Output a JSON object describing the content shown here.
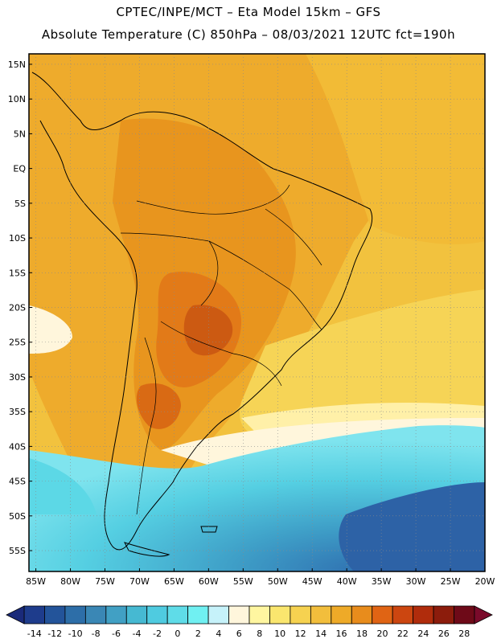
{
  "header": {
    "line1": "CPTEC/INPE/MCT –  Eta Model 15km – GFS",
    "line2": "Absolute Temperature (C) 850hPa – 08/03/2021 12UTC fct=190h"
  },
  "map": {
    "lat_labels": [
      "15N",
      "10N",
      "5N",
      "EQ",
      "5S",
      "10S",
      "15S",
      "20S",
      "25S",
      "30S",
      "35S",
      "40S",
      "45S",
      "50S",
      "55S"
    ],
    "lat_values": [
      15,
      10,
      5,
      0,
      -5,
      -10,
      -15,
      -20,
      -25,
      -30,
      -35,
      -40,
      -45,
      -50,
      -55
    ],
    "lon_labels": [
      "85W",
      "80W",
      "75W",
      "70W",
      "65W",
      "60W",
      "55W",
      "50W",
      "45W",
      "40W",
      "35W",
      "30W",
      "25W",
      "20W"
    ],
    "lon_values": [
      -85,
      -80,
      -75,
      -70,
      -65,
      -60,
      -55,
      -50,
      -45,
      -40,
      -35,
      -30,
      -25,
      -20
    ],
    "lat_range": [
      -58,
      16.5
    ],
    "lon_range": [
      -86,
      -20
    ]
  },
  "colorbar": {
    "labels": [
      "-14",
      "-12",
      "-10",
      "-8",
      "-6",
      "-4",
      "-2",
      "0",
      "2",
      "4",
      "6",
      "8",
      "10",
      "12",
      "14",
      "16",
      "18",
      "20",
      "22",
      "24",
      "26",
      "28"
    ],
    "colors": [
      "#1e3c8c",
      "#23549a",
      "#2d6ea8",
      "#3a87b5",
      "#41a0c4",
      "#46b9d2",
      "#4fcbe0",
      "#5fdce8",
      "#70f0f2",
      "#c6f2fa",
      "#fff6dc",
      "#fff6a0",
      "#fae66e",
      "#f6d250",
      "#f2be3c",
      "#eeaa28",
      "#e88c1c",
      "#e06414",
      "#cc4610",
      "#b02c0c",
      "#8c1c0c",
      "#6e0a18"
    ]
  }
}
